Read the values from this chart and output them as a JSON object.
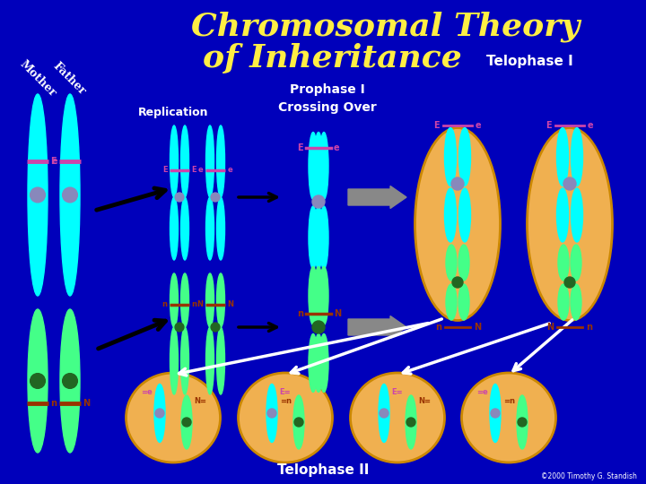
{
  "bg_color": "#0000bb",
  "title_line1": "Chromosomal Theory",
  "title_line2": "of Inheritance",
  "title_color": "#ffee44",
  "telophase1_label": "Telophase I",
  "telophase2_label": "Telophase II",
  "prophase_label1": "Prophase I",
  "prophase_label2": "Crossing Over",
  "replication_label": "Replication",
  "mother_label": "Mother",
  "father_label": "Father",
  "cyan": "#00ffff",
  "green": "#44ff88",
  "orange_cell": "#f0b050",
  "purple_cent": "#8888bb",
  "dg_cent": "#226622",
  "gene_color_cyan": "#cc44aa",
  "gene_color_green": "#993300",
  "white": "#ffffff",
  "gray_arrow": "#888888",
  "black": "#000000",
  "copyright": "©2000 Timothy G. Standish"
}
